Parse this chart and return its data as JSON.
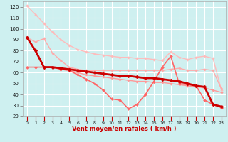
{
  "x": [
    0,
    1,
    2,
    3,
    4,
    5,
    6,
    7,
    8,
    9,
    10,
    11,
    12,
    13,
    14,
    15,
    16,
    17,
    18,
    19,
    20,
    21,
    22,
    23
  ],
  "series": [
    {
      "color": "#ffbbbb",
      "linewidth": 1.0,
      "marker": "D",
      "markersize": 1.8,
      "values": [
        121,
        113,
        105,
        97,
        90,
        85,
        81,
        79,
        77,
        76,
        75,
        74,
        74,
        73,
        73,
        72,
        71,
        79,
        74,
        72,
        74,
        75,
        73,
        44
      ]
    },
    {
      "color": "#ffaaaa",
      "linewidth": 1.0,
      "marker": "D",
      "markersize": 1.8,
      "values": [
        92,
        88,
        91,
        78,
        71,
        65,
        63,
        62,
        62,
        62,
        62,
        62,
        62,
        62,
        62,
        62,
        62,
        63,
        64,
        62,
        62,
        63,
        62,
        45
      ]
    },
    {
      "color": "#ff9999",
      "linewidth": 1.0,
      "marker": "D",
      "markersize": 1.8,
      "values": [
        92,
        80,
        65,
        65,
        63,
        62,
        60,
        58,
        57,
        56,
        55,
        54,
        53,
        52,
        52,
        51,
        51,
        50,
        49,
        48,
        47,
        46,
        44,
        42
      ]
    },
    {
      "color": "#ff6666",
      "linewidth": 1.2,
      "marker": "D",
      "markersize": 2.0,
      "values": [
        65,
        65,
        65,
        65,
        63,
        62,
        58,
        54,
        50,
        44,
        36,
        35,
        27,
        31,
        40,
        52,
        65,
        75,
        50,
        49,
        48,
        35,
        31,
        28
      ]
    },
    {
      "color": "#cc0000",
      "linewidth": 2.0,
      "marker": "D",
      "markersize": 2.5,
      "values": [
        92,
        80,
        65,
        65,
        64,
        63,
        62,
        61,
        60,
        59,
        58,
        57,
        57,
        56,
        55,
        55,
        54,
        53,
        52,
        50,
        48,
        47,
        31,
        29
      ]
    }
  ],
  "xlabel": "Vent moyen/en rafales ( km/h )",
  "xlim": [
    -0.5,
    23.5
  ],
  "ylim": [
    20,
    125
  ],
  "yticks": [
    20,
    30,
    40,
    50,
    60,
    70,
    80,
    90,
    100,
    110,
    120
  ],
  "xticks": [
    0,
    1,
    2,
    3,
    4,
    5,
    6,
    7,
    8,
    9,
    10,
    11,
    12,
    13,
    14,
    15,
    16,
    17,
    18,
    19,
    20,
    21,
    22,
    23
  ],
  "bg_color": "#cef0f0",
  "grid_color": "#ffffff",
  "tick_color": "#cc0000"
}
